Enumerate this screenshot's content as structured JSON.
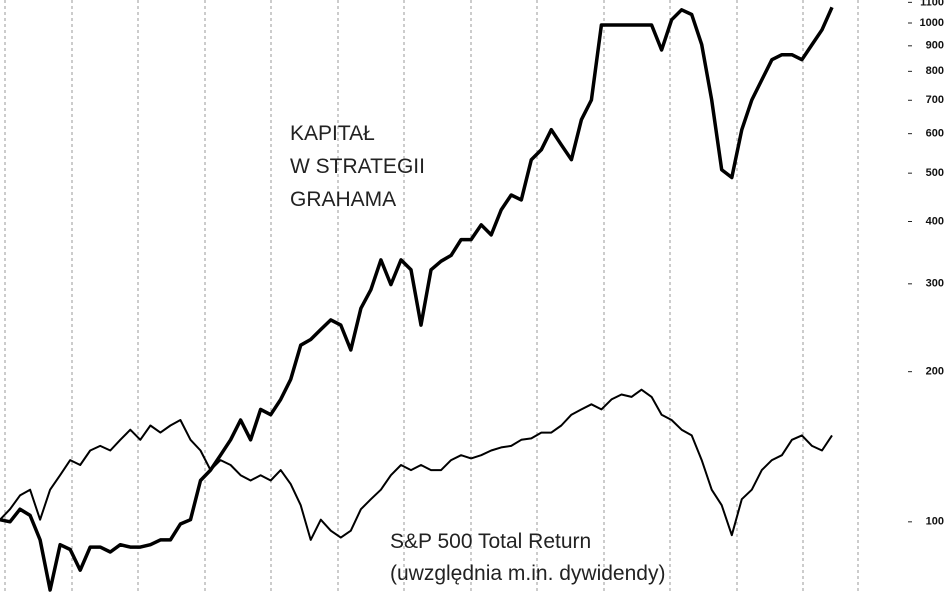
{
  "chart_data": {
    "type": "line",
    "log_scale": true,
    "ylim": [
      72,
      1112
    ],
    "yticks": [
      100,
      200,
      300,
      400,
      500,
      600,
      700,
      800,
      900,
      1000,
      1100
    ],
    "annotations": [
      {
        "lines": [
          "KAPITAŁ",
          "W STRATEGII",
          "GRAHAMA"
        ]
      },
      {
        "lines": [
          "S&P 500 Total Return",
          "(uwzględnia m.in. dywidendy)"
        ]
      }
    ],
    "series": [
      {
        "color": "#000000",
        "width": 3.5,
        "values": [
          101,
          100,
          106,
          103,
          92,
          73,
          90,
          88,
          80,
          89,
          89,
          87,
          90,
          89,
          89,
          90,
          92,
          92,
          99,
          101,
          121,
          127,
          136,
          146,
          160,
          146,
          168,
          164,
          176,
          193,
          226,
          232,
          243,
          254,
          248,
          221,
          268,
          292,
          335,
          299,
          335,
          320,
          248,
          320,
          333,
          342,
          368,
          368,
          394,
          376,
          422,
          452,
          442,
          532,
          557,
          611,
          570,
          532,
          640,
          701,
          991,
          991,
          991,
          991,
          991,
          991,
          883,
          1015,
          1063,
          1040,
          905,
          701,
          508,
          490,
          611,
          701,
          769,
          844,
          864,
          864,
          844,
          905,
          969,
          1075
        ]
      },
      {
        "color": "#000000",
        "width": 2,
        "values": [
          101,
          106,
          113,
          116,
          101,
          116,
          124,
          133,
          130,
          139,
          142,
          139,
          146,
          153,
          146,
          156,
          151,
          156,
          160,
          146,
          139,
          127,
          133,
          130,
          124,
          121,
          124,
          121,
          127,
          119,
          108,
          92,
          101,
          96,
          93,
          96,
          106,
          111,
          116,
          124,
          130,
          127,
          130,
          127,
          127,
          133,
          136,
          134,
          136,
          139,
          141,
          142,
          146,
          147,
          151,
          151,
          156,
          164,
          168,
          172,
          168,
          176,
          180,
          178,
          184,
          178,
          164,
          160,
          153,
          149,
          133,
          116,
          108,
          94,
          111,
          116,
          127,
          133,
          136,
          146,
          149,
          142,
          139,
          149
        ]
      }
    ]
  }
}
